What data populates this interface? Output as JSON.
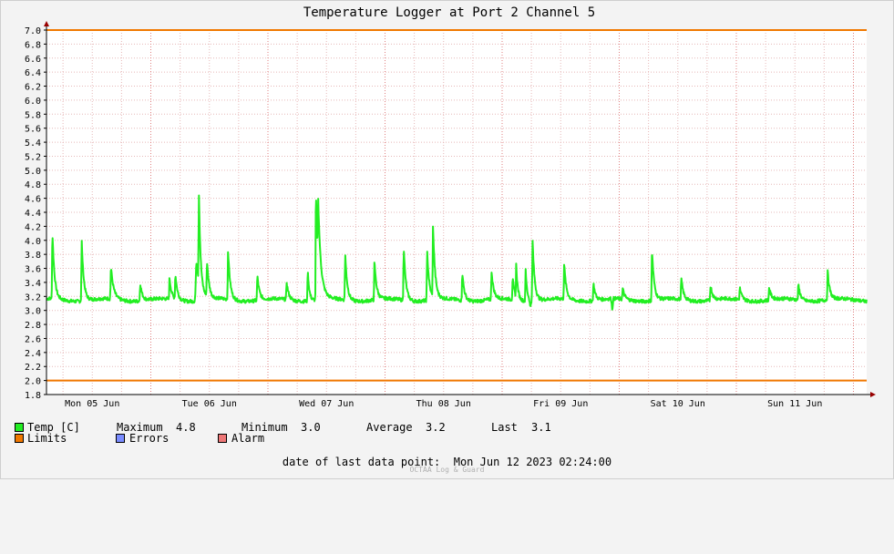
{
  "chart_data": {
    "type": "line",
    "title": "Temperature Logger at Port 2 Channel 5",
    "ylim": [
      1.8,
      7.0
    ],
    "y_ticks": [
      "1.8",
      "2.0",
      "2.2",
      "2.4",
      "2.6",
      "2.8",
      "3.0",
      "3.2",
      "3.4",
      "3.6",
      "3.8",
      "4.0",
      "4.2",
      "4.4",
      "4.6",
      "4.8",
      "5.0",
      "5.2",
      "5.4",
      "5.6",
      "5.8",
      "6.0",
      "6.2",
      "6.4",
      "6.6",
      "6.8",
      "7.0"
    ],
    "x_ticks": [
      "Mon 05 Jun",
      "Tue 06 Jun",
      "Wed 07 Jun",
      "Thu 08 Jun",
      "Fri 09 Jun",
      "Sat 10 Jun",
      "Sun 11 Jun"
    ],
    "grid": true,
    "colors": {
      "temp": "#22ee22",
      "limits": "#f07800",
      "errors": "#7a8cff",
      "alarm": "#ee7777",
      "grid": "#e6b8b8",
      "axis": "#000000",
      "arrow": "#990000"
    },
    "limits": {
      "upper": 7.0,
      "lower": 2.0
    },
    "series": [
      {
        "name": "Temp [C]",
        "baseline": 3.15,
        "spikes": [
          {
            "day": 0.16,
            "value": 4.1,
            "width": 0.02
          },
          {
            "day": 0.41,
            "value": 4.0,
            "width": 0.02
          },
          {
            "day": 0.66,
            "value": 3.6,
            "width": 0.025
          },
          {
            "day": 0.91,
            "value": 3.4,
            "width": 0.02
          },
          {
            "day": 1.16,
            "value": 3.45,
            "width": 0.02
          },
          {
            "day": 1.21,
            "value": 3.5,
            "width": 0.02
          },
          {
            "day": 1.39,
            "value": 3.7,
            "width": 0.04
          },
          {
            "day": 1.41,
            "value": 4.45,
            "width": 0.015
          },
          {
            "day": 1.48,
            "value": 3.65,
            "width": 0.02
          },
          {
            "day": 1.66,
            "value": 3.85,
            "width": 0.02
          },
          {
            "day": 1.91,
            "value": 3.5,
            "width": 0.02
          },
          {
            "day": 2.16,
            "value": 3.4,
            "width": 0.02
          },
          {
            "day": 2.34,
            "value": 3.6,
            "width": 0.015
          },
          {
            "day": 2.41,
            "value": 4.78,
            "width": 0.015
          },
          {
            "day": 2.43,
            "value": 4.2,
            "width": 0.03
          },
          {
            "day": 2.66,
            "value": 3.8,
            "width": 0.02
          },
          {
            "day": 2.91,
            "value": 3.7,
            "width": 0.02
          },
          {
            "day": 3.16,
            "value": 3.9,
            "width": 0.02
          },
          {
            "day": 3.36,
            "value": 3.85,
            "width": 0.02
          },
          {
            "day": 3.41,
            "value": 4.15,
            "width": 0.02
          },
          {
            "day": 3.66,
            "value": 3.55,
            "width": 0.02
          },
          {
            "day": 3.91,
            "value": 3.55,
            "width": 0.02
          },
          {
            "day": 4.09,
            "value": 3.45,
            "width": 0.02
          },
          {
            "day": 4.12,
            "value": 3.6,
            "width": 0.015
          },
          {
            "day": 4.2,
            "value": 3.6,
            "width": 0.015
          },
          {
            "day": 4.26,
            "value": 4.0,
            "width": 0.02
          },
          {
            "day": 4.53,
            "value": 3.65,
            "width": 0.02
          },
          {
            "day": 4.78,
            "value": 3.4,
            "width": 0.02
          },
          {
            "day": 5.03,
            "value": 3.3,
            "width": 0.02
          },
          {
            "day": 5.28,
            "value": 3.88,
            "width": 0.02
          },
          {
            "day": 5.53,
            "value": 3.45,
            "width": 0.02
          },
          {
            "day": 5.78,
            "value": 3.37,
            "width": 0.02
          },
          {
            "day": 6.03,
            "value": 3.32,
            "width": 0.02
          },
          {
            "day": 6.28,
            "value": 3.33,
            "width": 0.02
          },
          {
            "day": 6.53,
            "value": 3.37,
            "width": 0.02
          },
          {
            "day": 6.78,
            "value": 3.55,
            "width": 0.02
          }
        ],
        "dips": [
          {
            "day": 4.24,
            "value": 3.05
          },
          {
            "day": 4.94,
            "value": 3.0
          }
        ]
      }
    ]
  },
  "legend": {
    "temp_label": "Temp [C]",
    "maximum_label": "Maximum",
    "maximum_value": "4.8",
    "minimum_label": "Minimum",
    "minimum_value": "3.0",
    "average_label": "Average",
    "average_value": "3.2",
    "last_label": "Last",
    "last_value": "3.1",
    "limits_label": "Limits",
    "errors_label": "Errors",
    "alarm_label": "Alarm"
  },
  "footer": {
    "date_label": "date of last data point:",
    "date_value": "Mon Jun 12 2023 02:24:00",
    "brand": "OCTAA Log & Guard"
  }
}
